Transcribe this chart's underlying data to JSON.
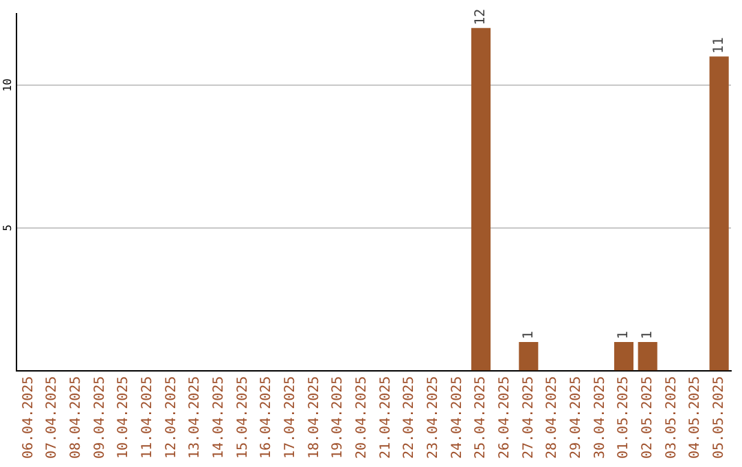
{
  "chart_data": {
    "type": "bar",
    "categories": [
      "06.04.2025",
      "07.04.2025",
      "08.04.2025",
      "09.04.2025",
      "10.04.2025",
      "11.04.2025",
      "12.04.2025",
      "13.04.2025",
      "14.04.2025",
      "15.04.2025",
      "16.04.2025",
      "17.04.2025",
      "18.04.2025",
      "19.04.2025",
      "20.04.2025",
      "21.04.2025",
      "22.04.2025",
      "23.04.2025",
      "24.04.2025",
      "25.04.2025",
      "26.04.2025",
      "27.04.2025",
      "28.04.2025",
      "29.04.2025",
      "30.04.2025",
      "01.05.2025",
      "02.05.2025",
      "03.05.2025",
      "04.05.2025",
      "05.05.2025"
    ],
    "values": [
      0,
      0,
      0,
      0,
      0,
      0,
      0,
      0,
      0,
      0,
      0,
      0,
      0,
      0,
      0,
      0,
      0,
      0,
      0,
      12,
      0,
      1,
      0,
      0,
      0,
      1,
      1,
      0,
      0,
      11
    ],
    "value_labels": [
      null,
      null,
      null,
      null,
      null,
      null,
      null,
      null,
      null,
      null,
      null,
      null,
      null,
      null,
      null,
      null,
      null,
      null,
      null,
      "12",
      null,
      "1",
      null,
      null,
      null,
      "1",
      "1",
      null,
      null,
      "11"
    ],
    "color": "#a0582a",
    "ylim": [
      0,
      12.5
    ],
    "yticks": [
      5,
      10
    ],
    "grid": "y",
    "legend": false
  }
}
